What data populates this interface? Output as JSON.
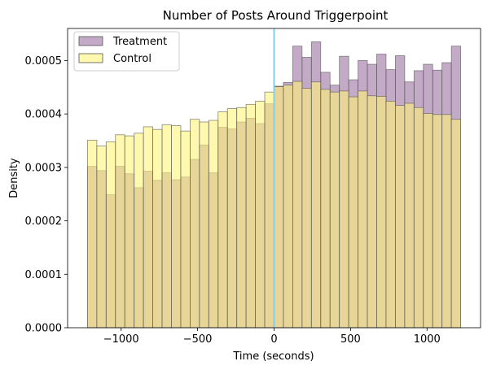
{
  "chart_data": {
    "type": "histogram",
    "title": "Number of Posts Around Triggerpoint",
    "xlabel": "Time (seconds)",
    "ylabel": "Density",
    "xlim": [
      -1350,
      1350
    ],
    "ylim": [
      0,
      0.00056
    ],
    "x_ticks": [
      -1000,
      -500,
      0,
      500,
      1000
    ],
    "x_tick_labels": [
      "−1000",
      "−500",
      "0",
      "500",
      "1000"
    ],
    "y_ticks": [
      0,
      0.0001,
      0.0002,
      0.0003,
      0.0004,
      0.0005
    ],
    "y_tick_labels": [
      "0.0000",
      "0.0001",
      "0.0002",
      "0.0003",
      "0.0004",
      "0.0005"
    ],
    "bin_edges": [
      -1220,
      -1159,
      -1098,
      -1037,
      -976,
      -915,
      -854,
      -793,
      -732,
      -671,
      -610,
      -549,
      -488,
      -427,
      -366,
      -305,
      -244,
      -183,
      -122,
      -61,
      0,
      61,
      122,
      183,
      244,
      305,
      366,
      427,
      488,
      549,
      610,
      671,
      732,
      793,
      854,
      915,
      976,
      1037,
      1098,
      1159,
      1220
    ],
    "vline_x": 0,
    "grid": false,
    "legend_position": "top-left",
    "series": [
      {
        "name": "Treatment",
        "color": "#9b72a0",
        "values": [
          0.000302,
          0.000294,
          0.000249,
          0.000302,
          0.000288,
          0.000262,
          0.000293,
          0.000276,
          0.00029,
          0.000277,
          0.000282,
          0.000315,
          0.000342,
          0.00029,
          0.000375,
          0.000372,
          0.000385,
          0.000392,
          0.000382,
          0.000419,
          0.000452,
          0.000459,
          0.000527,
          0.000506,
          0.000535,
          0.000478,
          0.000454,
          0.000508,
          0.000464,
          0.0005,
          0.000493,
          0.000512,
          0.000483,
          0.000509,
          0.00046,
          0.000481,
          0.000493,
          0.000482,
          0.000496,
          0.000527
        ]
      },
      {
        "name": "Control",
        "color": "#fff47a",
        "values": [
          0.000351,
          0.00034,
          0.000348,
          0.000361,
          0.000359,
          0.000364,
          0.000376,
          0.000371,
          0.00038,
          0.000378,
          0.000368,
          0.00039,
          0.000385,
          0.000388,
          0.000404,
          0.00041,
          0.000412,
          0.000418,
          0.000424,
          0.000441,
          0.000451,
          0.000454,
          0.000461,
          0.000448,
          0.00046,
          0.000446,
          0.000441,
          0.000443,
          0.000432,
          0.000443,
          0.000434,
          0.000433,
          0.000424,
          0.000416,
          0.00042,
          0.000412,
          0.000401,
          0.000399,
          0.000399,
          0.00039
        ]
      }
    ]
  },
  "style": {
    "vline_color": "#87ceeb",
    "edge_color": "#555555",
    "frame_color": "#000000"
  }
}
